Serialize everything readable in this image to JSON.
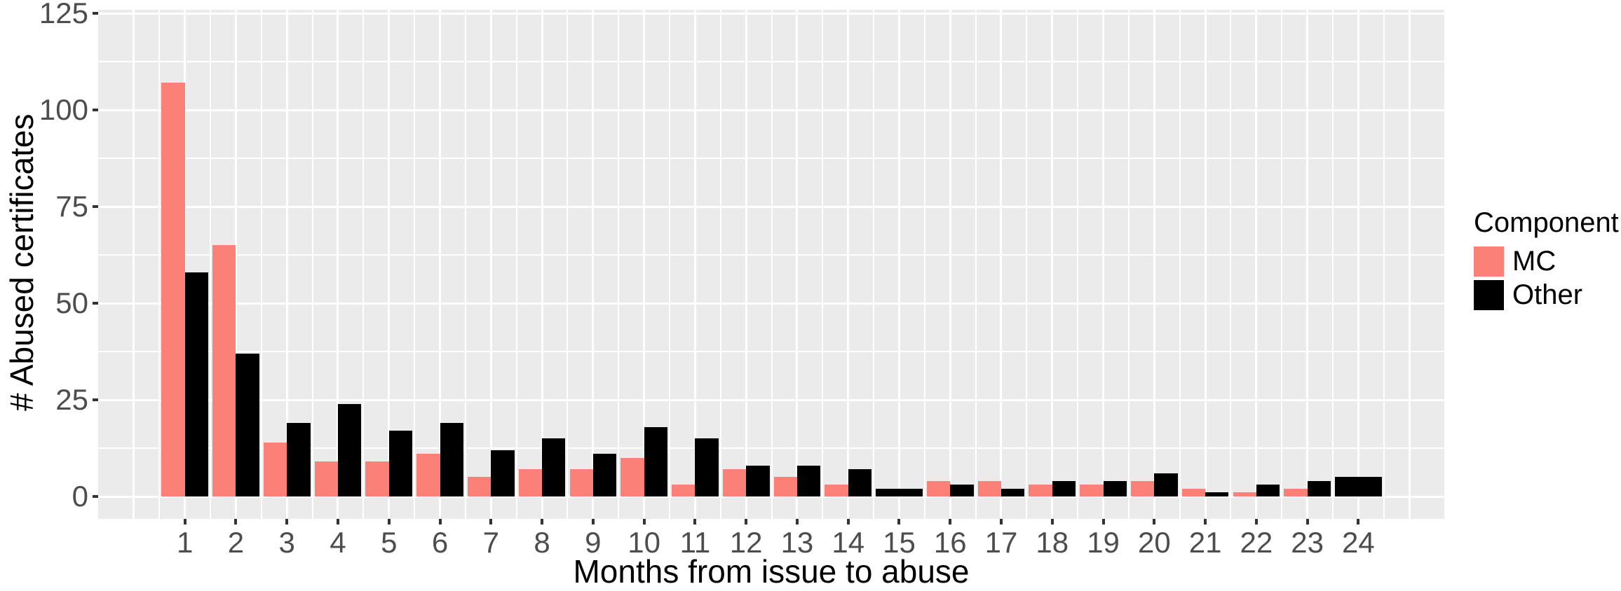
{
  "chart_data": {
    "type": "bar",
    "grouping": "dodged",
    "title": "",
    "xlabel": "Months from issue to abuse",
    "ylabel": "# Abused certificates",
    "categories": [
      "1",
      "2",
      "3",
      "4",
      "5",
      "6",
      "7",
      "8",
      "9",
      "10",
      "11",
      "12",
      "13",
      "14",
      "15",
      "16",
      "17",
      "18",
      "19",
      "20",
      "21",
      "22",
      "23",
      "24"
    ],
    "series": [
      {
        "name": "MC",
        "color": "#FA8078",
        "values": [
          107,
          65,
          14,
          9,
          9,
          11,
          5,
          7,
          7,
          10,
          3,
          7,
          5,
          3,
          null,
          4,
          4,
          3,
          3,
          4,
          2,
          1,
          2,
          null
        ]
      },
      {
        "name": "Other",
        "color": "#000000",
        "values": [
          58,
          37,
          19,
          24,
          17,
          19,
          12,
          15,
          11,
          18,
          15,
          8,
          8,
          7,
          2,
          3,
          2,
          4,
          4,
          6,
          1,
          3,
          4,
          5
        ]
      }
    ],
    "legend": {
      "title": "Component",
      "position": "right"
    },
    "y_axis": {
      "tick_values": [
        0,
        25,
        50,
        75,
        100,
        125
      ],
      "tick_labels": [
        "0",
        "25",
        "50",
        "75",
        "100",
        "125"
      ],
      "minor_tick_values": [
        12.5,
        37.5,
        62.5,
        87.5,
        112.5
      ],
      "ylim": [
        0,
        131.5
      ]
    },
    "x_axis": {
      "tick_labels": [
        "1",
        "2",
        "3",
        "4",
        "5",
        "6",
        "7",
        "8",
        "9",
        "10",
        "11",
        "12",
        "13",
        "14",
        "15",
        "16",
        "17",
        "18",
        "19",
        "20",
        "21",
        "22",
        "23",
        "24"
      ]
    },
    "style": {
      "panel_background": "#EBEBEB",
      "grid_color": "#FFFFFF",
      "tick_label_color": "#4D4D4D",
      "axis_title_color": "#000000"
    },
    "note_single_series_months": "Months 15 and 24 have only an Other bar drawn at double width"
  }
}
